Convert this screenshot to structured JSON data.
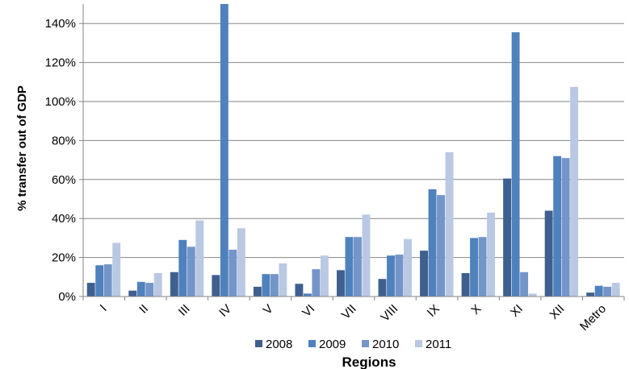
{
  "chart_data": {
    "type": "bar",
    "xlabel": "Regions",
    "ylabel": "% transfer out of GDP",
    "ylim": [
      0,
      1.5
    ],
    "yticks": [
      0,
      0.2,
      0.4,
      0.6,
      0.8,
      1.0,
      1.2,
      1.4
    ],
    "ytick_labels": [
      "0%",
      "20%",
      "40%",
      "60%",
      "80%",
      "100%",
      "120%",
      "140%"
    ],
    "grid": "horizontal major gridlines",
    "legend_position": "bottom",
    "categories": [
      "I",
      "II",
      "III",
      "IV",
      "V",
      "VI",
      "VII",
      "VIII",
      "IX",
      "X",
      "XI",
      "XII",
      "Metro"
    ],
    "series": [
      {
        "name": "2008",
        "color": "#3f5f8f",
        "values": [
          0.07,
          0.03,
          0.125,
          0.11,
          0.05,
          0.065,
          0.135,
          0.09,
          0.235,
          0.12,
          0.605,
          0.44,
          0.02
        ]
      },
      {
        "name": "2009",
        "color": "#4f81bd",
        "values": [
          0.16,
          0.075,
          0.29,
          1.5,
          0.115,
          0.015,
          0.305,
          0.21,
          0.55,
          0.3,
          1.355,
          0.72,
          0.055
        ]
      },
      {
        "name": "2010",
        "color": "#7395c9",
        "values": [
          0.165,
          0.07,
          0.255,
          0.24,
          0.115,
          0.14,
          0.305,
          0.215,
          0.52,
          0.305,
          0.125,
          0.71,
          0.05
        ]
      },
      {
        "name": "2011",
        "color": "#b9c8e3",
        "values": [
          0.275,
          0.12,
          0.39,
          0.35,
          0.17,
          0.21,
          0.42,
          0.295,
          0.74,
          0.43,
          0.015,
          1.075,
          0.07
        ]
      }
    ]
  }
}
